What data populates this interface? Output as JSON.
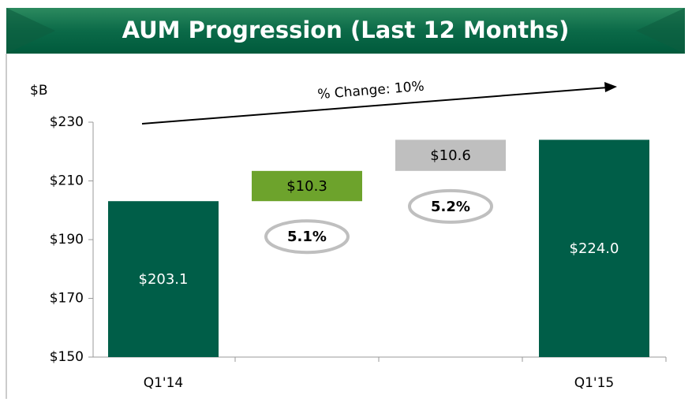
{
  "chart_data": {
    "type": "waterfall",
    "title": "AUM Progression (Last 12 Months)",
    "y_label": "$B",
    "annotation": "% Change: 10%",
    "categories": [
      "Q1'14",
      null,
      null,
      "Q1'15"
    ],
    "values": [
      203.1,
      10.3,
      10.6,
      224.0
    ],
    "value_labels": [
      "$203.1",
      "$10.3",
      "$10.6",
      "$224.0"
    ],
    "percent_labels": [
      null,
      "5.1%",
      "5.2%",
      null
    ],
    "colors": [
      "#005e48",
      "#6da32c",
      "#bfbfbf",
      "#005e48"
    ],
    "ylim": [
      150,
      230
    ],
    "yticks": [
      {
        "value": 150,
        "label": "$150"
      },
      {
        "value": 170,
        "label": "$170"
      },
      {
        "value": 190,
        "label": "$190"
      },
      {
        "value": 210,
        "label": "$210"
      },
      {
        "value": 230,
        "label": "$230"
      }
    ]
  }
}
